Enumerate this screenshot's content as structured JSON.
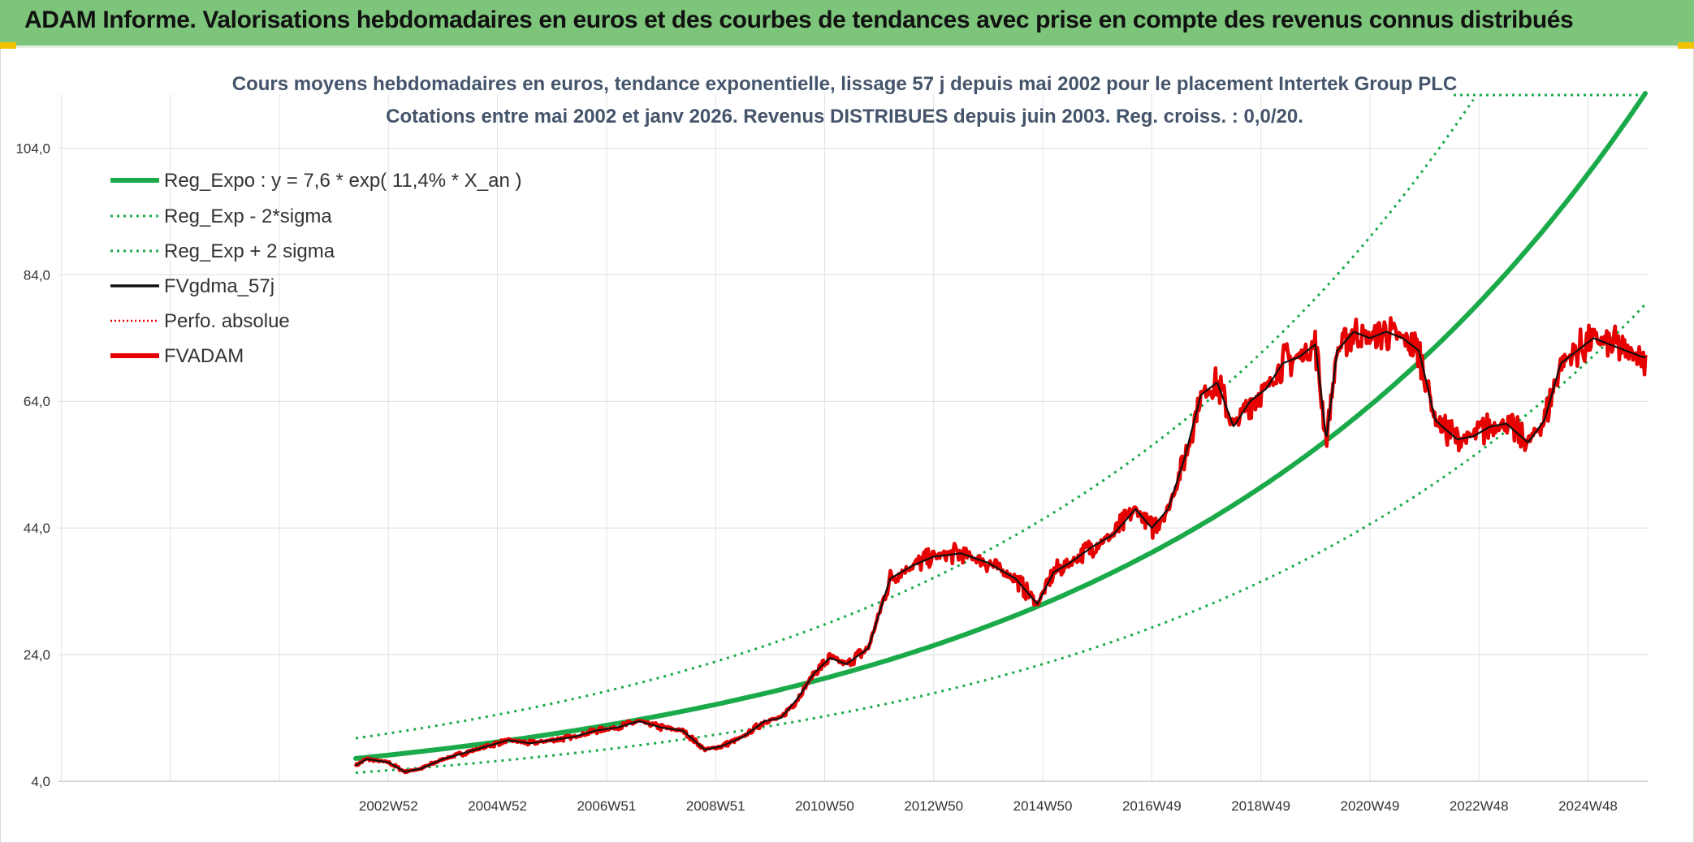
{
  "header": {
    "title": "ADAM Informe. Valorisations hebdomadaires en euros et des courbes de tendances avec prise en compte des revenus connus distribués"
  },
  "colors": {
    "banner": "#7dc57a",
    "trend": "#1aaa4a",
    "black": "#111111",
    "red": "#e60000",
    "grid": "#dcdcdc"
  },
  "chart_data": {
    "type": "line",
    "subtitle_line1": "Cours moyens hebdomadaires en euros, tendance exponentielle, lissage 57 j depuis mai 2002 pour le placement Intertek Group PLC",
    "subtitle_line2": "Cotations entre mai 2002 et janv 2026. Revenus DISTRIBUES depuis juin 2003. Reg. croiss. : 0,0/20.",
    "x_start_year": 2002.4,
    "x_end_year": 2026.05,
    "ylim": [
      4,
      112
    ],
    "ytick_values": [
      4,
      24,
      44,
      64,
      84,
      104
    ],
    "ytick_labels": [
      "4,0",
      "24,0",
      "44,0",
      "64,0",
      "84,0",
      "104,0"
    ],
    "xtick_labels": [
      "2002W52",
      "2004W52",
      "2006W51",
      "2008W51",
      "2010W50",
      "2012W50",
      "2014W50",
      "2016W49",
      "2018W49",
      "2020W49",
      "2022W48",
      "2024W48"
    ],
    "xtick_years": [
      2003.0,
      2005.0,
      2007.0,
      2009.0,
      2011.0,
      2013.0,
      2015.0,
      2017.0,
      2019.0,
      2021.0,
      2023.0,
      2025.0
    ],
    "regression": {
      "a": 7.6,
      "rate": 0.114,
      "sigma_factor": 1.42
    },
    "legend": [
      {
        "label": "Reg_Expo : y = 7,6 * exp( 11,4% *  X_an )",
        "style": "trend"
      },
      {
        "label": "Reg_Exp - 2*sigma",
        "style": "trend-dotted"
      },
      {
        "label": "Reg_Exp + 2 sigma",
        "style": "trend-dotted"
      },
      {
        "label": "FVgdma_57j",
        "style": "black"
      },
      {
        "label": "Perfo. absolue",
        "style": "red-dotted"
      },
      {
        "label": "FVADAM",
        "style": "red"
      }
    ],
    "series_fvadam": {
      "name": "FVADAM",
      "x": [
        2002.4,
        2002.6,
        2003.0,
        2003.3,
        2003.6,
        2004.0,
        2004.4,
        2004.8,
        2005.2,
        2005.6,
        2006.0,
        2006.4,
        2006.8,
        2007.2,
        2007.6,
        2008.0,
        2008.4,
        2008.8,
        2009.1,
        2009.5,
        2009.9,
        2010.2,
        2010.5,
        2010.8,
        2011.1,
        2011.4,
        2011.8,
        2012.2,
        2012.6,
        2013.0,
        2013.5,
        2014.0,
        2014.5,
        2014.9,
        2015.2,
        2015.5,
        2015.9,
        2016.3,
        2016.7,
        2017.0,
        2017.3,
        2017.6,
        2017.9,
        2018.2,
        2018.5,
        2018.8,
        2019.1,
        2019.4,
        2019.7,
        2020.0,
        2020.2,
        2020.4,
        2020.7,
        2021.0,
        2021.3,
        2021.6,
        2021.9,
        2022.2,
        2022.6,
        2022.9,
        2023.2,
        2023.5,
        2023.9,
        2024.2,
        2024.5,
        2024.8,
        2025.1,
        2025.4,
        2025.7,
        2026.0
      ],
      "y": [
        6.5,
        7.5,
        7.0,
        5.5,
        6.0,
        7.5,
        8.5,
        9.5,
        10.5,
        10.0,
        10.5,
        11.0,
        12.0,
        12.5,
        13.5,
        12.5,
        12.0,
        9.0,
        9.5,
        11.0,
        13.5,
        14.0,
        17.0,
        21.0,
        23.5,
        22.5,
        25.0,
        36.0,
        38.0,
        39.5,
        40.0,
        38.5,
        36.0,
        32.0,
        37.0,
        38.5,
        41.0,
        43.0,
        47.0,
        44.0,
        47.0,
        55.0,
        65.0,
        67.0,
        60.0,
        64.0,
        66.0,
        70.0,
        71.0,
        73.0,
        58.0,
        72.0,
        75.0,
        74.0,
        75.0,
        74.0,
        72.0,
        61.0,
        58.0,
        58.5,
        60.0,
        60.5,
        57.5,
        61.0,
        70.0,
        72.0,
        74.0,
        73.0,
        72.0,
        71.0
      ]
    }
  }
}
